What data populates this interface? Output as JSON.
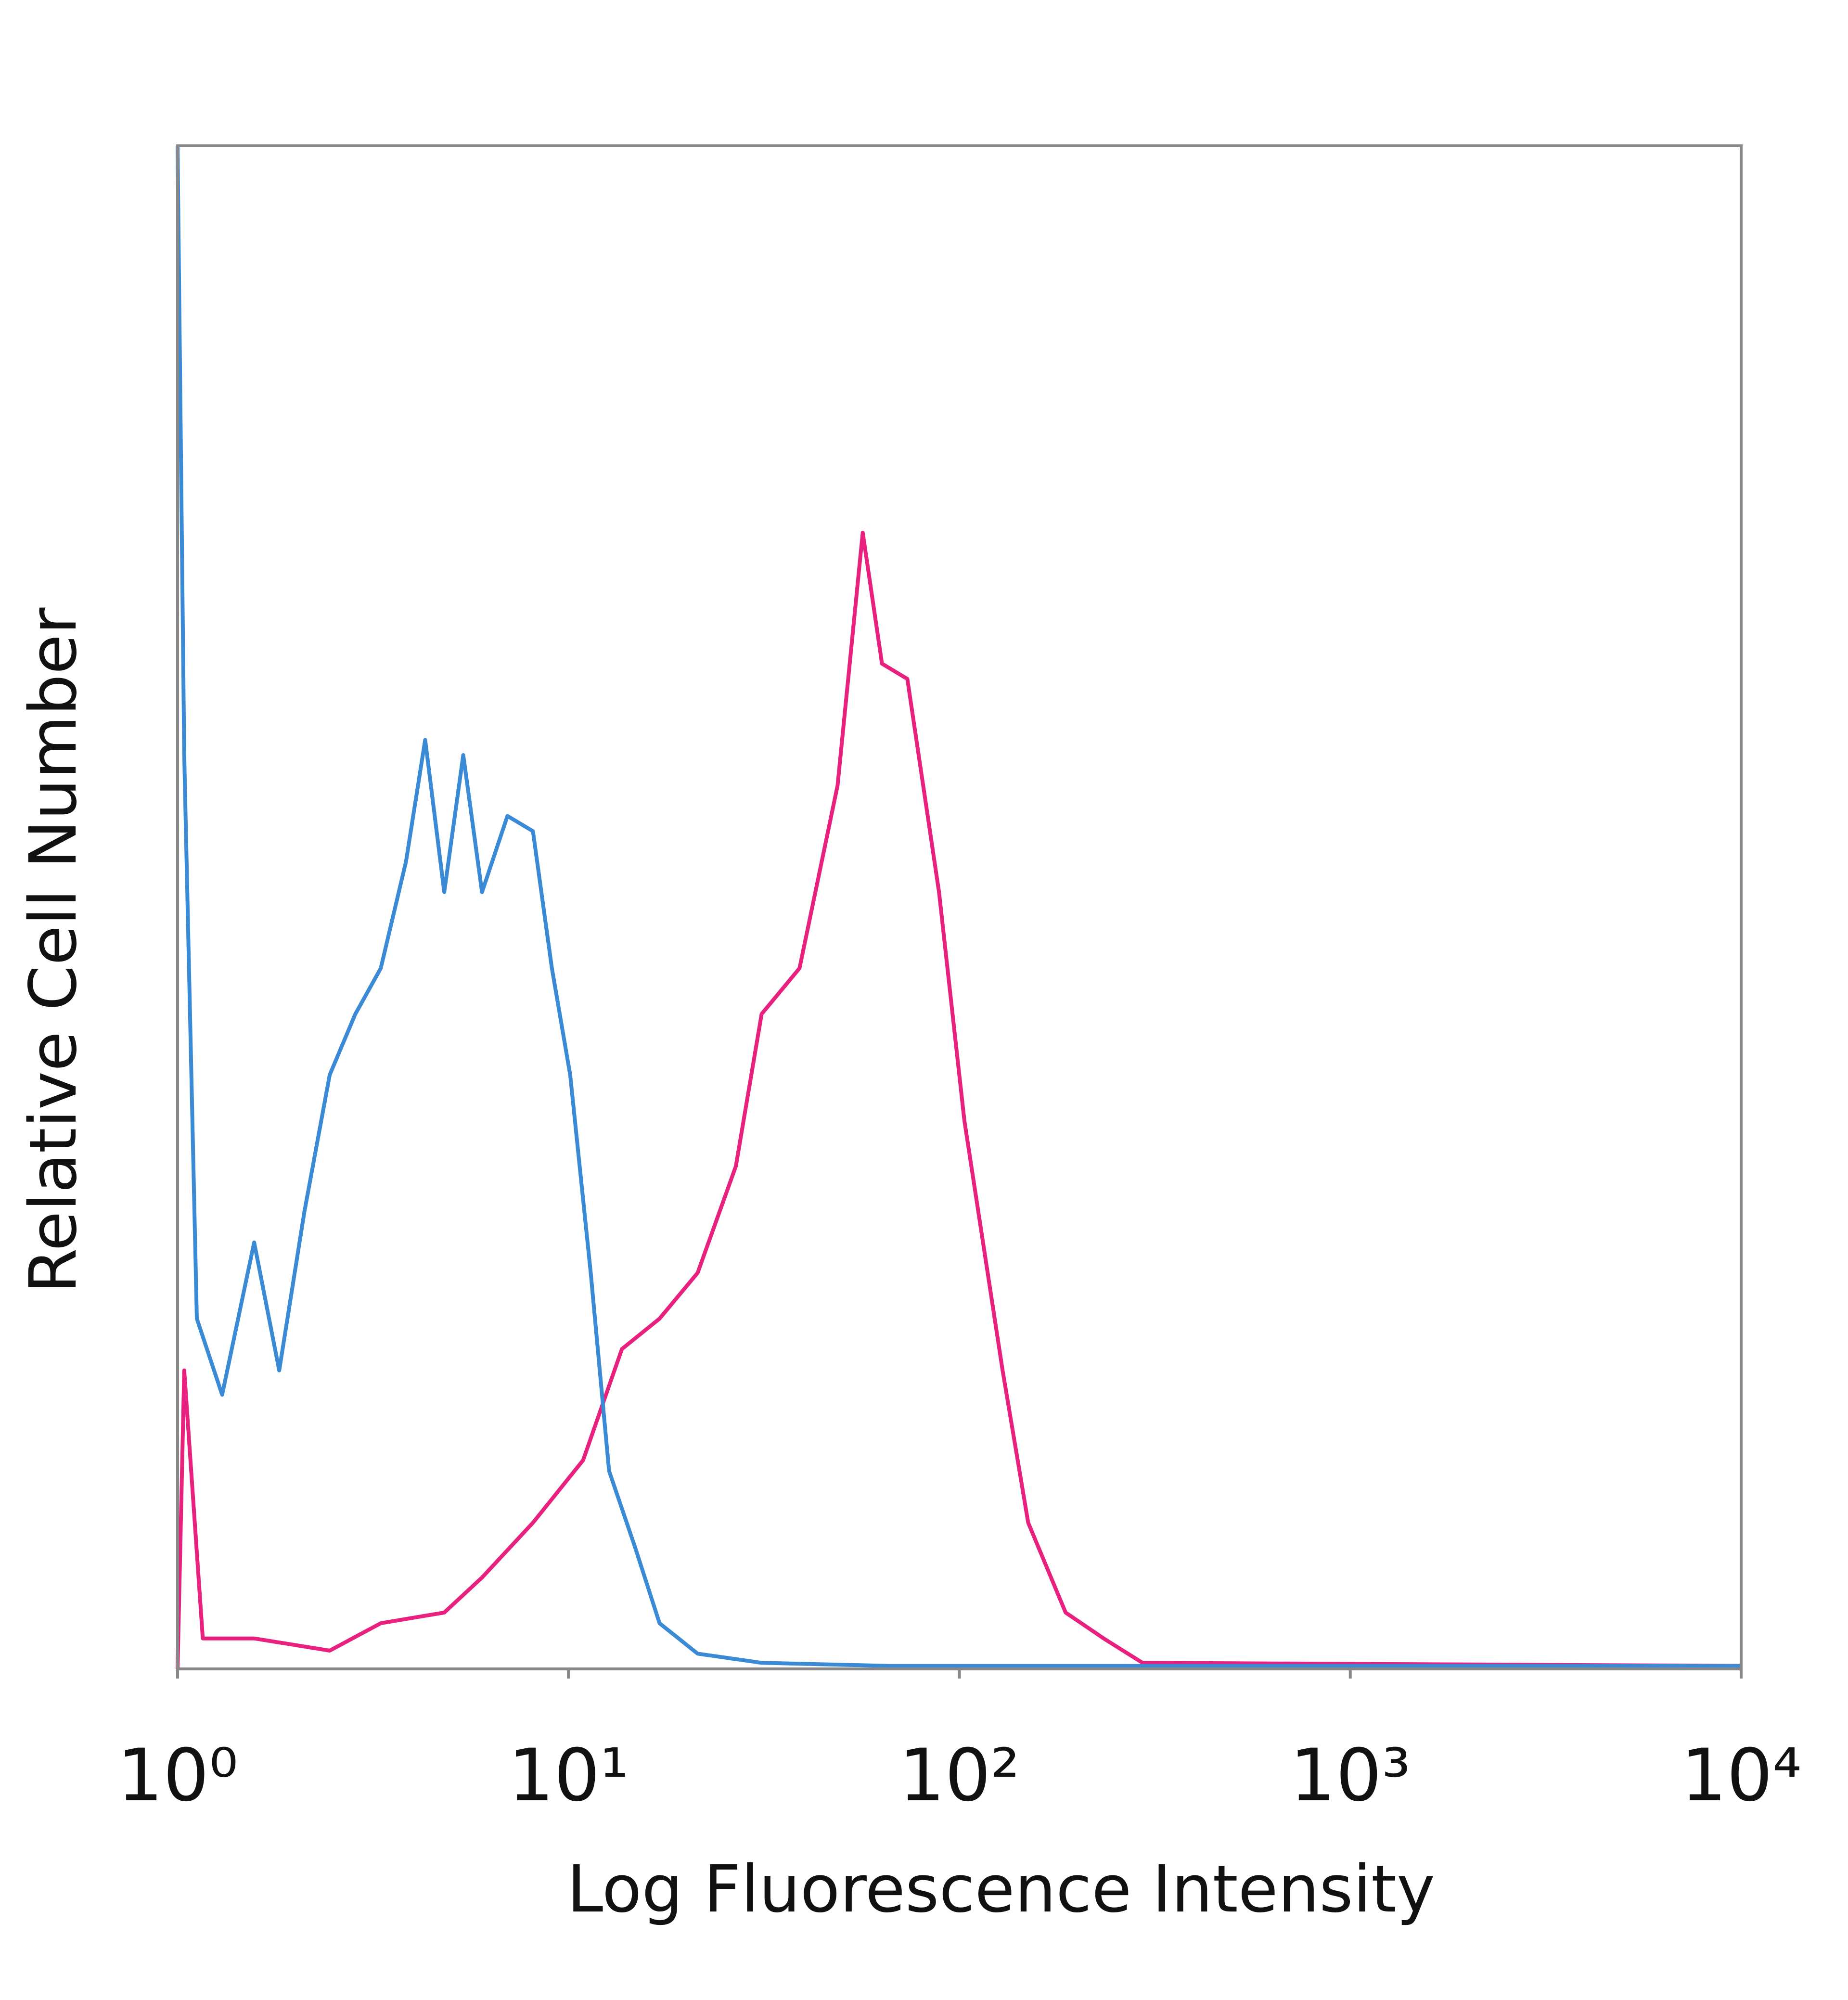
{
  "chart_data": {
    "type": "line",
    "xlabel": "Log Fluorescence Intensity",
    "ylabel": "Relative Cell Number",
    "xscale": "log",
    "xlim": [
      1,
      10000
    ],
    "xticks": [
      {
        "value": 1,
        "label": "10⁰"
      },
      {
        "value": 10,
        "label": "10¹"
      },
      {
        "value": 100,
        "label": "10²"
      },
      {
        "value": 1000,
        "label": "10³"
      },
      {
        "value": 10000,
        "label": "10⁴"
      }
    ],
    "ylim": [
      0,
      100
    ],
    "series": [
      {
        "color": "#3a8ad6",
        "x": [
          1,
          1.04,
          1.12,
          1.3,
          1.57,
          1.82,
          2.11,
          2.45,
          2.85,
          3.31,
          3.84,
          4.3,
          4.81,
          5.38,
          6.01,
          6.98,
          8.11,
          9.07,
          10.1,
          11.4,
          12.7,
          14.8,
          17.1,
          21.4,
          31.2,
          65.8,
          10000
        ],
        "values": [
          100,
          60,
          23,
          18,
          28,
          19.6,
          30,
          39,
          43,
          46,
          53,
          61,
          51,
          60,
          51,
          56,
          55,
          46,
          39,
          26,
          13,
          8,
          3,
          1,
          0.4,
          0.2,
          0.2
        ]
      },
      {
        "color": "#e8217f",
        "x": [
          1,
          1.04,
          1.16,
          1.57,
          2.45,
          3.31,
          4.81,
          6.01,
          8.11,
          10.9,
          13.7,
          17.1,
          21.4,
          26.8,
          31.2,
          39,
          48.8,
          56.6,
          63.4,
          73.6,
          88.7,
          103,
          129,
          150,
          187,
          234,
          294,
          10000
        ],
        "values": [
          0,
          19.6,
          2,
          2,
          1.2,
          3,
          3.7,
          6,
          9.6,
          13.7,
          21,
          23,
          26,
          33,
          43,
          46,
          58,
          74.6,
          66,
          65,
          51,
          36,
          19.6,
          9.6,
          3.7,
          2,
          0.4,
          0.2
        ]
      }
    ]
  }
}
